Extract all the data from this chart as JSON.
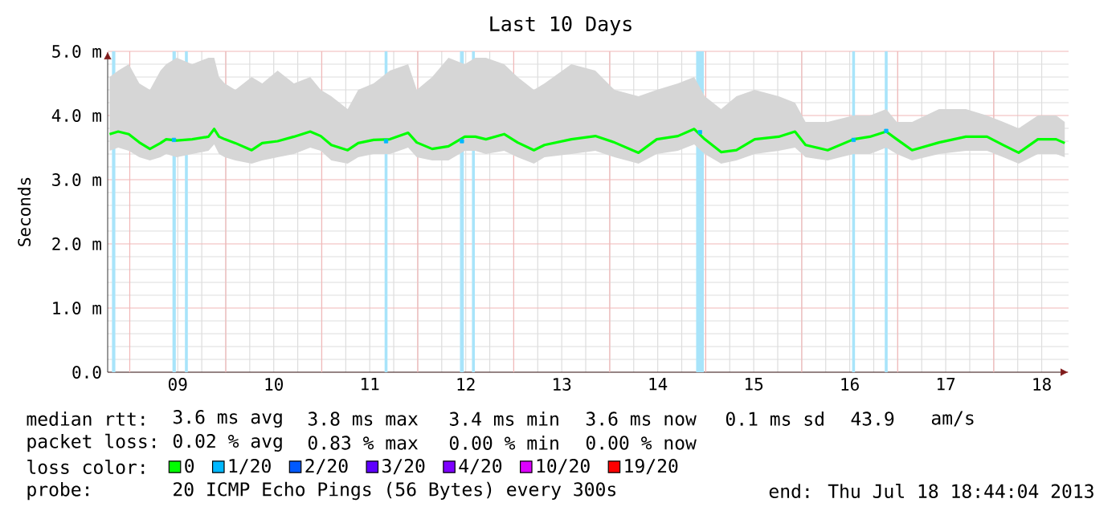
{
  "chart_data": {
    "type": "line",
    "title": "Last 10 Days",
    "ylabel": "Seconds",
    "xlim": [
      8.77,
      18.78
    ],
    "xticks": [
      {
        "value": 9,
        "label": null
      },
      {
        "value": 10,
        "label": null
      },
      {
        "value": 11,
        "label": null
      },
      {
        "value": 12,
        "label": null
      },
      {
        "value": 13,
        "label": null
      },
      {
        "value": 14,
        "label": null
      },
      {
        "value": 15,
        "label": null
      },
      {
        "value": 16,
        "label": null
      },
      {
        "value": 17,
        "label": null
      },
      {
        "value": 18,
        "label": null
      },
      {
        "value": 9.5,
        "label": "09"
      },
      {
        "value": 10.5,
        "label": "10"
      },
      {
        "value": 11.5,
        "label": "11"
      },
      {
        "value": 12.5,
        "label": "12"
      },
      {
        "value": 13.5,
        "label": "13"
      },
      {
        "value": 14.5,
        "label": "14"
      },
      {
        "value": 15.5,
        "label": "15"
      },
      {
        "value": 16.5,
        "label": "16"
      },
      {
        "value": 17.5,
        "label": "17"
      },
      {
        "value": 18.5,
        "label": "18"
      }
    ],
    "ylim": [
      0,
      5
    ],
    "yticks": [
      {
        "value": 0,
        "label": "0.0"
      },
      {
        "value": 1,
        "label": "1.0 m"
      },
      {
        "value": 2,
        "label": "2.0 m"
      },
      {
        "value": 3,
        "label": "3.0 m"
      },
      {
        "value": 4,
        "label": "4.0 m"
      },
      {
        "value": 5,
        "label": "5.0 m"
      }
    ],
    "grid": true,
    "legend": "bottom",
    "series": [
      {
        "name": "0",
        "color": "#00ff00",
        "x": [
          8.79,
          8.88,
          8.99,
          9.1,
          9.21,
          9.32,
          9.38,
          9.49,
          9.65,
          9.82,
          9.88,
          9.93,
          9.99,
          10.1,
          10.27,
          10.38,
          10.54,
          10.71,
          10.88,
          10.99,
          11.1,
          11.27,
          11.38,
          11.54,
          11.71,
          11.9,
          11.99,
          12.15,
          12.32,
          12.49,
          12.6,
          12.71,
          12.9,
          13.04,
          13.21,
          13.32,
          13.6,
          13.85,
          14.05,
          14.3,
          14.49,
          14.71,
          14.88,
          14.99,
          15.16,
          15.32,
          15.51,
          15.76,
          15.93,
          16.04,
          16.27,
          16.54,
          16.71,
          16.88,
          16.99,
          17.15,
          17.43,
          17.71,
          17.93,
          18.1,
          18.26,
          18.46,
          18.65,
          18.74
        ],
        "values": [
          3.71,
          3.75,
          3.71,
          3.58,
          3.48,
          3.57,
          3.63,
          3.61,
          3.63,
          3.67,
          3.79,
          3.67,
          3.63,
          3.57,
          3.46,
          3.57,
          3.6,
          3.67,
          3.75,
          3.68,
          3.54,
          3.46,
          3.57,
          3.62,
          3.63,
          3.73,
          3.58,
          3.48,
          3.52,
          3.67,
          3.67,
          3.63,
          3.71,
          3.58,
          3.46,
          3.54,
          3.63,
          3.68,
          3.58,
          3.42,
          3.63,
          3.68,
          3.79,
          3.63,
          3.43,
          3.46,
          3.63,
          3.67,
          3.75,
          3.54,
          3.46,
          3.63,
          3.67,
          3.75,
          3.63,
          3.46,
          3.58,
          3.67,
          3.67,
          3.54,
          3.42,
          3.63,
          3.63,
          3.57
        ],
        "lower": [
          3.45,
          3.5,
          3.45,
          3.35,
          3.3,
          3.35,
          3.4,
          3.35,
          3.4,
          3.45,
          3.55,
          3.4,
          3.35,
          3.3,
          3.25,
          3.3,
          3.35,
          3.4,
          3.5,
          3.45,
          3.3,
          3.25,
          3.35,
          3.4,
          3.4,
          3.5,
          3.35,
          3.3,
          3.3,
          3.45,
          3.45,
          3.4,
          3.45,
          3.35,
          3.25,
          3.35,
          3.4,
          3.45,
          3.35,
          3.25,
          3.4,
          3.45,
          3.55,
          3.4,
          3.25,
          3.3,
          3.4,
          3.45,
          3.5,
          3.35,
          3.3,
          3.4,
          3.4,
          3.5,
          3.4,
          3.3,
          3.4,
          3.45,
          3.45,
          3.35,
          3.25,
          3.4,
          3.4,
          3.35
        ],
        "upper": [
          4.6,
          4.7,
          4.8,
          4.5,
          4.4,
          4.7,
          4.8,
          4.9,
          4.8,
          4.9,
          4.9,
          4.6,
          4.5,
          4.4,
          4.6,
          4.5,
          4.7,
          4.5,
          4.6,
          4.4,
          4.3,
          4.1,
          4.4,
          4.5,
          4.7,
          4.8,
          4.4,
          4.6,
          4.9,
          4.8,
          4.9,
          4.9,
          4.8,
          4.6,
          4.4,
          4.5,
          4.8,
          4.7,
          4.4,
          4.3,
          4.4,
          4.5,
          4.6,
          4.3,
          4.1,
          4.3,
          4.4,
          4.3,
          4.2,
          3.9,
          3.9,
          4.0,
          4.0,
          4.1,
          3.9,
          3.9,
          4.1,
          4.1,
          4.0,
          3.9,
          3.8,
          4.0,
          4.0,
          3.9
        ]
      },
      {
        "name": "1/20",
        "color": "#00b8ff",
        "type": "scatter",
        "x": [
          9.46,
          11.67,
          12.46,
          14.94,
          16.54,
          16.88
        ],
        "values": [
          3.62,
          3.6,
          3.6,
          3.74,
          3.62,
          3.76
        ]
      },
      {
        "name": "2/20",
        "color": "#0059ff"
      },
      {
        "name": "3/20",
        "color": "#5e00ff"
      },
      {
        "name": "4/20",
        "color": "#7e00ff"
      },
      {
        "name": "10/20",
        "color": "#dd00ff"
      },
      {
        "name": "19/20",
        "color": "#ff0000"
      }
    ],
    "bands": [
      {
        "axis": "x",
        "from": 8.815,
        "to": 8.85,
        "color": "#a8e4fa"
      },
      {
        "axis": "x",
        "from": 9.445,
        "to": 9.48,
        "color": "#a8e4fa"
      },
      {
        "axis": "x",
        "from": 9.575,
        "to": 9.605,
        "color": "#a8e4fa"
      },
      {
        "axis": "x",
        "from": 11.655,
        "to": 11.685,
        "color": "#a8e4fa"
      },
      {
        "axis": "x",
        "from": 12.44,
        "to": 12.48,
        "color": "#a8e4fa"
      },
      {
        "axis": "x",
        "from": 12.565,
        "to": 12.595,
        "color": "#a8e4fa"
      },
      {
        "axis": "x",
        "from": 14.9,
        "to": 14.98,
        "color": "#a8e4fa"
      },
      {
        "axis": "x",
        "from": 16.525,
        "to": 16.555,
        "color": "#a8e4fa"
      },
      {
        "axis": "x",
        "from": 16.865,
        "to": 16.895,
        "color": "#a8e4fa"
      }
    ],
    "annotations": [
      "median rtt:",
      "3.6 ms avg",
      "3.8 ms max",
      "3.4 ms min",
      "3.6 ms now",
      "0.1 ms sd",
      "43.9",
      "am/s",
      "packet loss:",
      "0.02 % avg",
      "0.83 % max",
      "0.00 % min",
      "0.00 % now",
      "loss color:",
      "probe:",
      "20 ICMP Echo Pings (56 Bytes) every 300s",
      "end: Thu Jul 18 18:44:04 2013"
    ]
  }
}
